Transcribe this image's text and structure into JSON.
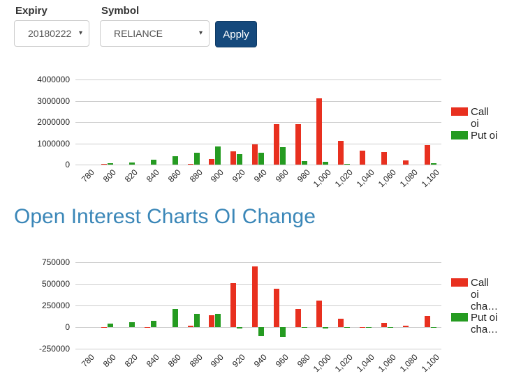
{
  "form": {
    "expiry_label": "Expiry",
    "expiry_value": "20180222",
    "symbol_label": "Symbol",
    "symbol_value": "RELIANCE",
    "apply_label": "Apply"
  },
  "icons": {
    "caret_down": "▾"
  },
  "heading": "Open Interest Charts OI Change",
  "colors": {
    "call_red": "#e8301f",
    "put_green": "#259b21",
    "heading_blue": "#3b87b8",
    "apply_bg": "#15497c",
    "gridline": "#cccccc"
  },
  "chart_data": [
    {
      "type": "bar",
      "title": "",
      "categories": [
        "780",
        "800",
        "820",
        "840",
        "860",
        "880",
        "900",
        "920",
        "940",
        "960",
        "980",
        "1,000",
        "1,020",
        "1,040",
        "1,060",
        "1,080",
        "1,100"
      ],
      "series": [
        {
          "name": "Call oi",
          "color": "#e8301f",
          "values": [
            0,
            30000,
            0,
            0,
            0,
            30000,
            250000,
            620000,
            940000,
            1890000,
            1890000,
            3130000,
            1130000,
            670000,
            600000,
            210000,
            910000
          ]
        },
        {
          "name": "Put oi",
          "color": "#259b21",
          "values": [
            0,
            80000,
            90000,
            240000,
            400000,
            570000,
            860000,
            490000,
            560000,
            820000,
            170000,
            140000,
            40000,
            0,
            0,
            0,
            50000
          ]
        }
      ],
      "legend": [
        {
          "text": "Call\noi"
        },
        {
          "text": "Put oi"
        }
      ],
      "legend_position": "right",
      "grid": true,
      "ylim": [
        0,
        4000000
      ],
      "yticks": [
        0,
        1000000,
        2000000,
        3000000,
        4000000
      ],
      "ytick_labels": [
        "0",
        "1000000",
        "2000000",
        "3000000",
        "4000000"
      ],
      "xlabel": "",
      "ylabel": ""
    },
    {
      "type": "bar",
      "title": "",
      "categories": [
        "780",
        "800",
        "820",
        "840",
        "860",
        "880",
        "900",
        "920",
        "940",
        "960",
        "980",
        "1,000",
        "1,020",
        "1,040",
        "1,060",
        "1,080",
        "1,100"
      ],
      "series": [
        {
          "name": "Call oi cha…",
          "color": "#e8301f",
          "values": [
            0,
            -10000,
            0,
            -10000,
            0,
            15000,
            135000,
            505000,
            700000,
            440000,
            210000,
            310000,
            100000,
            -12000,
            45000,
            20000,
            130000
          ]
        },
        {
          "name": "Put oi cha…",
          "color": "#259b21",
          "values": [
            0,
            40000,
            60000,
            75000,
            210000,
            150000,
            150000,
            -15000,
            -105000,
            -110000,
            -10000,
            -15000,
            -8000,
            -5000,
            -8000,
            0,
            -8000
          ]
        }
      ],
      "legend": [
        {
          "text": "Call\noi\ncha…"
        },
        {
          "text": "Put oi\ncha…"
        }
      ],
      "legend_position": "right",
      "grid": true,
      "ylim": [
        -250000,
        750000
      ],
      "yticks": [
        -250000,
        0,
        250000,
        500000,
        750000
      ],
      "ytick_labels": [
        "-250000",
        "0",
        "250000",
        "500000",
        "750000"
      ],
      "xlabel": "",
      "ylabel": ""
    }
  ]
}
